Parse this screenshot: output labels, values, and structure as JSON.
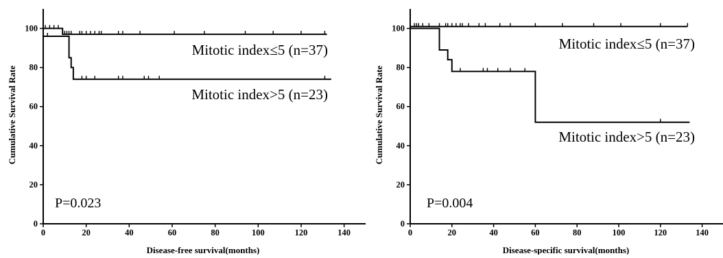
{
  "chart_data": [
    {
      "type": "line",
      "xlabel": "Disease-free survival(months)",
      "ylabel": "Cumulative Survival Rate",
      "xlim": [
        0,
        150
      ],
      "ylim": [
        0,
        110
      ],
      "x_ticks": [
        0,
        20,
        40,
        60,
        80,
        100,
        120,
        140
      ],
      "y_ticks": [
        0,
        20,
        40,
        60,
        80,
        100
      ],
      "pvalue": "P=0.023",
      "series": [
        {
          "name": "Mitotic index≤5 (n=37)",
          "steps": [
            [
              0,
              100
            ],
            [
              9,
              97
            ],
            [
              132,
              97
            ]
          ],
          "censored": [
            1,
            3,
            5,
            7,
            10,
            11,
            12,
            13,
            17,
            18,
            20,
            22,
            24,
            26,
            27,
            35,
            37,
            45,
            61,
            75,
            94,
            107,
            120,
            131
          ]
        },
        {
          "name": "Mitotic index>5 (n=23)",
          "steps": [
            [
              0,
              96
            ],
            [
              12,
              85
            ],
            [
              13,
              80
            ],
            [
              14,
              74
            ],
            [
              134,
              74
            ]
          ],
          "censored": [
            2,
            18,
            20,
            24,
            35,
            37,
            47,
            49,
            54,
            131
          ]
        }
      ]
    },
    {
      "type": "line",
      "xlabel": "Disease-specific survival(months)",
      "ylabel": "Cumulative Survival Rate",
      "xlim": [
        0,
        150
      ],
      "ylim": [
        0,
        110
      ],
      "x_ticks": [
        0,
        20,
        40,
        60,
        80,
        100,
        120,
        140
      ],
      "y_ticks": [
        0,
        20,
        40,
        60,
        80,
        100
      ],
      "pvalue": "P=0.004",
      "series": [
        {
          "name": "Mitotic index≤5 (n=37)",
          "steps": [
            [
              0,
              101
            ],
            [
              133,
              101
            ]
          ],
          "censored": [
            2,
            3,
            4,
            6,
            9,
            14,
            17,
            18,
            20,
            22,
            24,
            25,
            28,
            33,
            36,
            43,
            48,
            60,
            73,
            88,
            101,
            120,
            133
          ]
        },
        {
          "name": "Mitotic index>5 (n=23)",
          "steps": [
            [
              0,
              100
            ],
            [
              14,
              89
            ],
            [
              18,
              84
            ],
            [
              20,
              78
            ],
            [
              60,
              52
            ],
            [
              134,
              52
            ]
          ],
          "censored": [
            18,
            24,
            35,
            37,
            42,
            48,
            55,
            120
          ]
        }
      ]
    }
  ]
}
